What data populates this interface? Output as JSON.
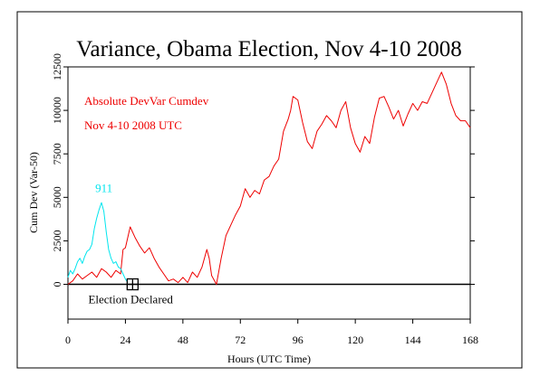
{
  "colors": {
    "background": "#ffffff",
    "frame": "#000000",
    "main_series": "#ee0000",
    "comparison_series": "#00e5ee",
    "baseline": "#000000"
  },
  "chart_data": {
    "type": "line",
    "title": "Variance, Obama Election, Nov 4-10 2008",
    "xlabel": "Hours (UTC Time)",
    "ylabel": "Cum Dev (Var-50)",
    "xlim": [
      0,
      168
    ],
    "ylim": [
      -2000,
      12500
    ],
    "x_ticks": [
      0,
      24,
      48,
      72,
      96,
      120,
      144,
      168
    ],
    "y_ticks": [
      0,
      2500,
      5000,
      7500,
      10000,
      12500
    ],
    "grid": false,
    "legend_position": "top-left",
    "legend": [
      {
        "label": "Absolute DevVar Cumdev",
        "series": 0
      },
      {
        "label": "Nov 4-10 2008 UTC",
        "series": 0
      }
    ],
    "series": [
      {
        "label": "",
        "color": "#ee0000",
        "x": [
          0,
          2,
          4,
          6,
          8,
          10,
          12,
          14,
          16,
          18,
          20,
          22,
          23,
          24,
          26,
          28,
          30,
          32,
          34,
          36,
          38,
          40,
          42,
          44,
          46,
          48,
          50,
          52,
          54,
          56,
          58,
          59,
          60,
          62,
          64,
          66,
          68,
          70,
          72,
          74,
          76,
          78,
          80,
          82,
          84,
          86,
          88,
          90,
          92,
          93,
          94,
          96,
          98,
          100,
          102,
          104,
          106,
          108,
          110,
          112,
          114,
          116,
          118,
          120,
          122,
          124,
          126,
          128,
          130,
          132,
          134,
          136,
          138,
          140,
          142,
          144,
          146,
          148,
          150,
          152,
          154,
          156,
          158,
          160,
          162,
          164,
          166,
          168
        ],
        "y": [
          0,
          200,
          600,
          300,
          500,
          700,
          400,
          900,
          700,
          400,
          800,
          600,
          2000,
          2100,
          3300,
          2700,
          2200,
          1800,
          2100,
          1500,
          1000,
          600,
          200,
          300,
          100,
          400,
          100,
          700,
          400,
          1000,
          2000,
          1500,
          500,
          0,
          1500,
          2800,
          3400,
          4000,
          4500,
          5500,
          5000,
          5400,
          5200,
          6000,
          6200,
          6800,
          7200,
          8800,
          9500,
          10000,
          10800,
          10600,
          9300,
          8200,
          7800,
          8800,
          9200,
          9700,
          9400,
          9000,
          10000,
          10500,
          9000,
          8100,
          7600,
          8500,
          8100,
          9600,
          10700,
          10800,
          10200,
          9500,
          10000,
          9100,
          9800,
          10400,
          10000,
          10500,
          10400,
          11000,
          11600,
          12200,
          11500,
          10400,
          9700,
          9400,
          9400,
          9000
        ]
      },
      {
        "label": "911",
        "color": "#00e5ee",
        "x": [
          0,
          1,
          2,
          3,
          4,
          5,
          6,
          7,
          8,
          9,
          10,
          11,
          12,
          13,
          14,
          15,
          16,
          17,
          18,
          19,
          20,
          21,
          22,
          23,
          24,
          25
        ],
        "y": [
          400,
          800,
          600,
          900,
          1300,
          1500,
          1200,
          1600,
          1900,
          2000,
          2300,
          3200,
          3800,
          4300,
          4700,
          4200,
          3000,
          2000,
          1500,
          1200,
          1300,
          1000,
          900,
          600,
          300,
          100
        ]
      }
    ],
    "annotations": [
      {
        "text": "911",
        "x": 15,
        "y": 5300,
        "color": "#00e5ee"
      },
      {
        "text": "Election Declared",
        "x": 8.5,
        "y": -1100,
        "color": "#000000"
      }
    ],
    "marker": {
      "x": 27,
      "y": 0,
      "symbol": "squared-cross"
    }
  }
}
